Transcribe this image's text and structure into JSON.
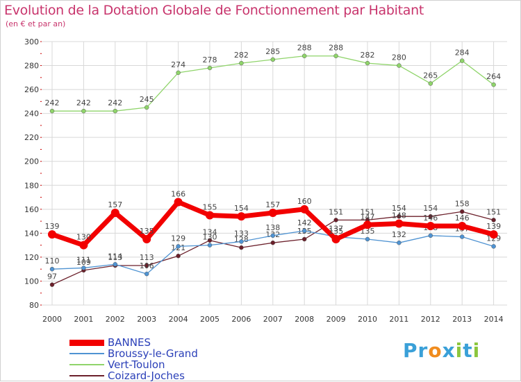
{
  "header": {
    "title": "Evolution de la Dotation Globale de Fonctionnement par Habitant",
    "subtitle": "(en € et par an)"
  },
  "logo": {
    "text": "Proxiti",
    "letters": [
      {
        "ch": "P",
        "color": "#3aa0d8"
      },
      {
        "ch": "r",
        "color": "#3aa0d8"
      },
      {
        "ch": "o",
        "color": "#f08c1e"
      },
      {
        "ch": "x",
        "color": "#3aa0d8"
      },
      {
        "ch": "i",
        "color": "#8cc63e"
      },
      {
        "ch": "t",
        "color": "#3aa0d8"
      },
      {
        "ch": "i",
        "color": "#8cc63e"
      }
    ]
  },
  "colors": {
    "grid": "#d8d8d8",
    "axis_text": "#333333",
    "tick_red": "#cc0000"
  },
  "chart_data": {
    "type": "line",
    "title": "Evolution de la Dotation Globale de Fonctionnement par Habitant",
    "subtitle": "(en € et par an)",
    "xlabel": "",
    "ylabel": "",
    "x": [
      "2000",
      "2001",
      "2002",
      "2003",
      "2004",
      "2005",
      "2006",
      "2007",
      "2008",
      "2009",
      "2010",
      "2011",
      "2012",
      "2013",
      "2014"
    ],
    "ylim": [
      80,
      300
    ],
    "yticks": [
      80,
      100,
      120,
      140,
      160,
      180,
      200,
      220,
      240,
      260,
      280,
      300
    ],
    "grid": true,
    "legend_position": "bottom-left",
    "series": [
      {
        "name": "Vert-Toulon",
        "color": "#8fd46a",
        "values": [
          242,
          242,
          242,
          245,
          274,
          278,
          282,
          285,
          288,
          288,
          282,
          280,
          265,
          284,
          264
        ],
        "labels": [
          "242",
          "242",
          "242",
          "245",
          "274",
          "278",
          "282",
          "285",
          "288",
          "288",
          "282",
          "280",
          "265",
          "284",
          "264"
        ]
      },
      {
        "name": "Coizard-Joches",
        "color": "#6b1f2a",
        "values": [
          97,
          109,
          113,
          113,
          121,
          134,
          128,
          132,
          135,
          151,
          151,
          154,
          154,
          158,
          151
        ],
        "labels": [
          "97",
          "109",
          "113",
          "113",
          "121",
          "134",
          "128",
          "132",
          "135",
          "151",
          "151",
          "154",
          "154",
          "158",
          "151"
        ]
      },
      {
        "name": "Broussy-le-Grand",
        "color": "#4f93d2",
        "values": [
          110,
          111,
          114,
          106,
          129,
          130,
          133,
          138,
          142,
          137,
          135,
          132,
          138,
          137,
          129
        ],
        "labels": [
          "110",
          "111",
          "114",
          "106",
          "129",
          "130",
          "133",
          "138",
          "142",
          "137",
          "135",
          "132",
          "138",
          "137",
          "129"
        ]
      },
      {
        "name": "BANNES",
        "color": "#f20000",
        "values": [
          139,
          130,
          157,
          135,
          166,
          155,
          154,
          157,
          160,
          135,
          147,
          148,
          146,
          146,
          139
        ],
        "labels": [
          "139",
          "130",
          "157",
          "135",
          "166",
          "155",
          "154",
          "157",
          "160",
          "135",
          "147",
          "148",
          "146",
          "146",
          "139"
        ]
      }
    ],
    "legend": [
      "BANNES",
      "Broussy-le-Grand",
      "Vert-Toulon",
      "Coizard-Joches"
    ]
  }
}
